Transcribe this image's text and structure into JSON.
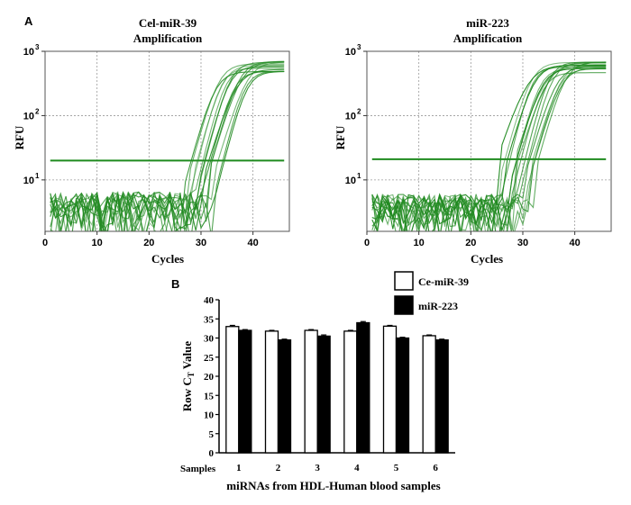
{
  "panel_labels": {
    "a": "A",
    "b": "B"
  },
  "colors": {
    "amp_curve": "#228b22",
    "threshold": "#1f8a1f",
    "grid": "#9a9a9a",
    "bar_open": "#ffffff",
    "bar_filled": "#000000"
  },
  "chart_data": [
    {
      "type": "line",
      "title_line1": "Cel-miR-39",
      "title_line2": "Amplification",
      "xlabel": "Cycles",
      "ylabel": "RFU",
      "xticks": [
        "0",
        "10",
        "20",
        "30",
        "40"
      ],
      "yticks": [
        {
          "base": "10",
          "exp": "1"
        },
        {
          "base": "10",
          "exp": "2"
        },
        {
          "base": "10",
          "exp": "3"
        }
      ],
      "xlim": [
        0,
        47
      ],
      "ylog_lim": [
        0.2,
        3.0
      ],
      "grid": true,
      "threshold": 20,
      "series_count": 14,
      "curve_ct_range": [
        29,
        35
      ],
      "plateau_range": [
        480,
        700
      ],
      "noise_max": 6.5
    },
    {
      "type": "line",
      "title_line1": "miR-223",
      "title_line2": "Amplification",
      "xlabel": "Cycles",
      "ylabel": "RFU",
      "xticks": [
        "0",
        "10",
        "20",
        "30",
        "40"
      ],
      "yticks": [
        {
          "base": "10",
          "exp": "1"
        },
        {
          "base": "10",
          "exp": "2"
        },
        {
          "base": "10",
          "exp": "3"
        }
      ],
      "xlim": [
        0,
        47
      ],
      "ylog_lim": [
        0.2,
        3.0
      ],
      "grid": true,
      "threshold": 21,
      "series_count": 16,
      "curve_ct_range": [
        27,
        34
      ],
      "plateau_range": [
        450,
        700
      ],
      "noise_max": 6.0
    },
    {
      "type": "bar",
      "xlabel": "miRNAs from HDL-Human blood samples",
      "ylabel": "Row C",
      "ylabel_sub": "T",
      "ylabel_suffix": " Value",
      "category_axis_label": "Samples",
      "categories": [
        "1",
        "2",
        "3",
        "4",
        "5",
        "6"
      ],
      "ylim": [
        0,
        40
      ],
      "yticks": [
        "0",
        "5",
        "10",
        "15",
        "20",
        "25",
        "30",
        "35",
        "40"
      ],
      "legend_position": "top-right",
      "series": [
        {
          "name": "Ce-miR-39",
          "values": [
            33.0,
            31.8,
            32.0,
            31.8,
            33.1,
            30.6
          ],
          "errors": [
            0.3,
            0.2,
            0.2,
            0.2,
            0.2,
            0.2
          ]
        },
        {
          "name": "miR-223",
          "values": [
            32.0,
            29.5,
            30.5,
            34.0,
            30.0,
            29.5
          ],
          "errors": [
            0.2,
            0.2,
            0.3,
            0.3,
            0.2,
            0.2
          ]
        }
      ]
    }
  ]
}
